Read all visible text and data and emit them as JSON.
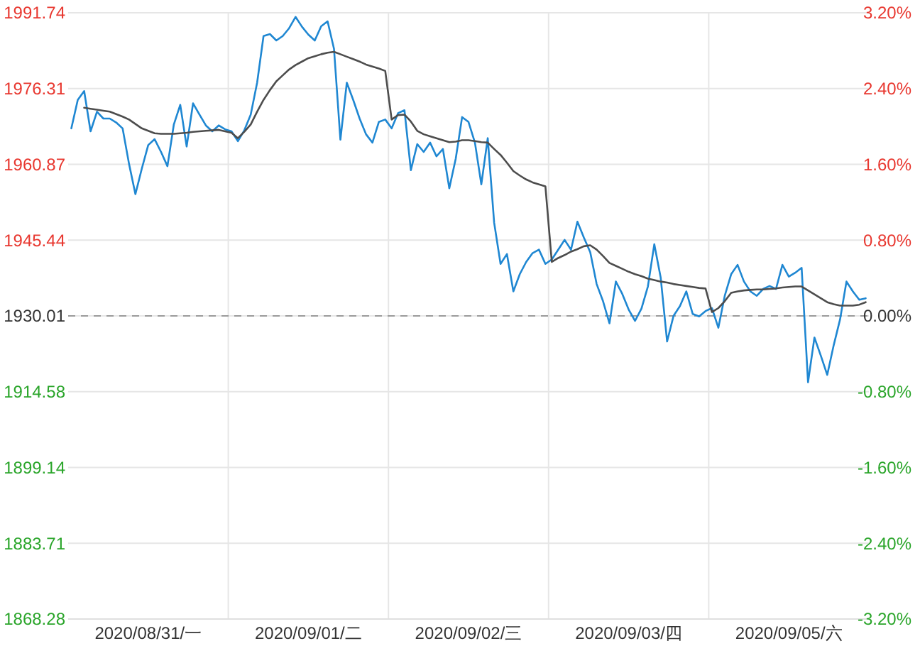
{
  "chart_data": {
    "type": "line",
    "categories": [
      null,
      null,
      null,
      null,
      null,
      null,
      null,
      null,
      null,
      null,
      null,
      null,
      "2020/08/31/一",
      null,
      null,
      null,
      null,
      null,
      null,
      null,
      null,
      null,
      null,
      null,
      null,
      null,
      null,
      null,
      null,
      null,
      null,
      null,
      null,
      null,
      null,
      null,
      null,
      "2020/09/01/二",
      null,
      null,
      null,
      null,
      null,
      null,
      null,
      null,
      null,
      null,
      null,
      null,
      null,
      null,
      null,
      null,
      null,
      null,
      null,
      null,
      null,
      null,
      null,
      null,
      "2020/09/02/三",
      null,
      null,
      null,
      null,
      null,
      null,
      null,
      null,
      null,
      null,
      null,
      null,
      null,
      null,
      null,
      null,
      null,
      null,
      null,
      null,
      null,
      null,
      null,
      null,
      "2020/09/03/四",
      null,
      null,
      null,
      null,
      null,
      null,
      null,
      null,
      null,
      null,
      null,
      null,
      null,
      null,
      null,
      null,
      null,
      null,
      null,
      null,
      null,
      null,
      null,
      null,
      "2020/09/05/六",
      null,
      null,
      null,
      null,
      null,
      null,
      null,
      null,
      null,
      null,
      null,
      null
    ],
    "ylim": [
      1868.28,
      1991.74
    ],
    "yticks": [
      1868.28,
      1883.71,
      1899.14,
      1914.58,
      1930.01,
      1945.44,
      1960.87,
      1976.31,
      1991.74
    ],
    "y2lim": [
      -3.2,
      3.2
    ],
    "y2ticks": [
      {
        "value": -3.2,
        "label": "-3.20%"
      },
      {
        "value": -2.4,
        "label": "-2.40%"
      },
      {
        "value": -1.6,
        "label": "-1.60%"
      },
      {
        "value": -0.8,
        "label": "-0.80%"
      },
      {
        "value": 0,
        "label": "0.00%"
      },
      {
        "value": 0.8,
        "label": "0.80%"
      },
      {
        "value": 1.6,
        "label": "1.60%"
      },
      {
        "value": 2.4,
        "label": "2.40%"
      },
      {
        "value": 3.2,
        "label": "3.20%"
      }
    ],
    "grid": true,
    "ref_lines": [
      {
        "axis": "y",
        "value": 1930.01,
        "color": "#9a9a9a",
        "line_style": "dashed"
      }
    ],
    "series": [
      {
        "color": "#1f87d2",
        "values": [
          1968.2,
          1974.0,
          1975.8,
          1967.6,
          1971.6,
          1970.2,
          1970.2,
          1969.4,
          1968.2,
          1961.0,
          1954.8,
          1960.0,
          1964.8,
          1966.0,
          1963.4,
          1960.5,
          1969.0,
          1973.0,
          1964.5,
          1973.3,
          1971.0,
          1968.8,
          1967.6,
          1968.8,
          1968.0,
          1967.6,
          1965.6,
          1967.8,
          1971.0,
          1977.5,
          1987.0,
          1987.4,
          1986.1,
          1987.0,
          1988.6,
          1990.9,
          1988.9,
          1987.3,
          1986.1,
          1989.0,
          1990.0,
          1984.4,
          1965.9,
          1977.5,
          1974.0,
          1970.2,
          1967.0,
          1965.3,
          1969.5,
          1970.0,
          1968.2,
          1971.3,
          1971.9,
          1959.7,
          1965.0,
          1963.4,
          1965.3,
          1962.5,
          1964.0,
          1956.0,
          1962.0,
          1970.5,
          1969.5,
          1965.3,
          1956.8,
          1966.2,
          1949.0,
          1940.6,
          1942.6,
          1935.0,
          1938.5,
          1941.0,
          1942.8,
          1943.5,
          1940.6,
          1941.5,
          1943.5,
          1945.5,
          1943.5,
          1949.2,
          1946.0,
          1943.0,
          1936.5,
          1933.0,
          1928.5,
          1937.0,
          1934.5,
          1931.3,
          1929.0,
          1931.5,
          1936.0,
          1944.6,
          1937.8,
          1924.8,
          1930.0,
          1932.0,
          1935.0,
          1930.4,
          1929.9,
          1931.0,
          1931.6,
          1927.6,
          1934.1,
          1938.5,
          1940.4,
          1937.0,
          1935.0,
          1934.1,
          1935.5,
          1936.1,
          1935.5,
          1940.4,
          1938.0,
          1938.8,
          1939.8,
          1916.5,
          1925.6,
          1921.9,
          1918.0,
          1924.0,
          1929.3,
          1937.0,
          1935.0,
          1933.3,
          1933.6
        ]
      },
      {
        "color": "#4d4d4d",
        "values": [
          null,
          null,
          1972.4,
          1972.2,
          1972.0,
          1971.8,
          1971.6,
          1971.1,
          1970.6,
          1970.0,
          1969.1,
          1968.2,
          1967.7,
          1967.2,
          1967.1,
          1967.1,
          1967.1,
          1967.2,
          1967.3,
          1967.5,
          1967.6,
          1967.7,
          1967.8,
          1967.9,
          1967.6,
          1967.3,
          1966.2,
          1967.5,
          1969.0,
          1971.6,
          1974.0,
          1976.0,
          1977.8,
          1979.0,
          1980.2,
          1981.1,
          1981.8,
          1982.5,
          1982.9,
          1983.3,
          1983.6,
          1983.8,
          1983.3,
          1982.8,
          1982.3,
          1981.8,
          1981.2,
          1980.8,
          1980.4,
          1979.9,
          1970.0,
          1970.9,
          1971.0,
          1969.6,
          1967.7,
          1967.0,
          1966.6,
          1966.2,
          1965.8,
          1965.4,
          1965.5,
          1965.8,
          1965.8,
          1965.6,
          1965.4,
          1965.3,
          1964.0,
          1962.8,
          1961.2,
          1959.5,
          1958.6,
          1957.8,
          1957.2,
          1956.8,
          1956.4,
          1941.0,
          1941.8,
          1942.4,
          1943.1,
          1943.6,
          1944.2,
          1944.4,
          1943.5,
          1942.2,
          1940.8,
          1940.2,
          1939.6,
          1939.0,
          1938.5,
          1938.1,
          1937.6,
          1937.3,
          1937.0,
          1936.8,
          1936.5,
          1936.3,
          1936.1,
          1935.9,
          1935.7,
          1935.6,
          1930.8,
          1931.6,
          1933.0,
          1934.7,
          1935.0,
          1935.2,
          1935.3,
          1935.4,
          1935.4,
          1935.5,
          1935.6,
          1935.8,
          1935.9,
          1936.0,
          1936.0,
          1935.2,
          1934.4,
          1933.6,
          1932.8,
          1932.4,
          1932.1,
          1932.1,
          1932.1,
          1932.3,
          1932.8
        ]
      }
    ]
  }
}
